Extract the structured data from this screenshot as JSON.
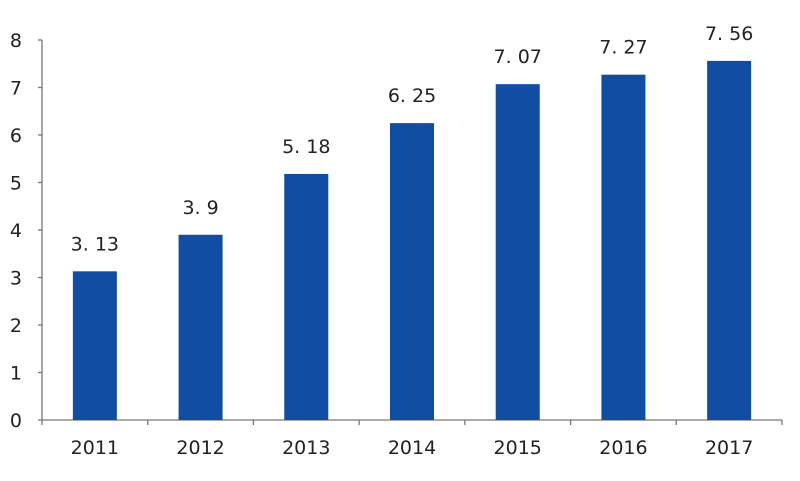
{
  "chart_data": {
    "type": "bar",
    "categories": [
      "2011",
      "2012",
      "2013",
      "2014",
      "2015",
      "2016",
      "2017"
    ],
    "values": [
      3.13,
      3.9,
      5.18,
      6.25,
      7.07,
      7.27,
      7.56
    ],
    "value_labels": [
      "3. 13",
      "3. 9",
      "5. 18",
      "6. 25",
      "7. 07",
      "7. 27",
      "7. 56"
    ],
    "y_ticks": [
      "0",
      "1",
      "2",
      "3",
      "4",
      "5",
      "6",
      "7",
      "8"
    ],
    "ylim": [
      0,
      8
    ],
    "grid": false,
    "bar_color": "#0f4ea3"
  }
}
